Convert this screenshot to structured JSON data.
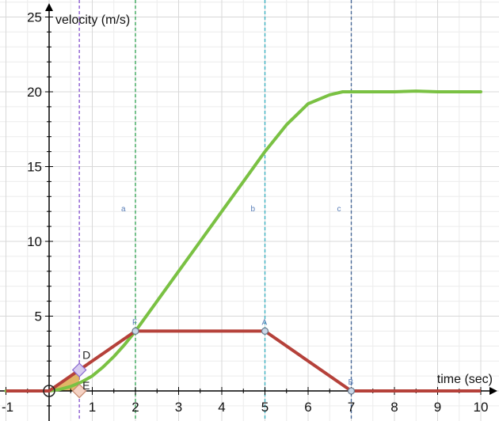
{
  "chart_data": {
    "type": "line",
    "xlabel": "time (sec)",
    "ylabel": "velocity (m/s)",
    "xlim": [
      -1,
      10
    ],
    "ylim": [
      -1.5,
      25
    ],
    "x_ticks": [
      -1,
      1,
      2,
      3,
      4,
      5,
      6,
      7,
      8,
      9,
      10
    ],
    "y_ticks": [
      5,
      10,
      15,
      20,
      25
    ],
    "grid": true,
    "colors": {
      "smooth": "#7ac143",
      "segment": "#b5413a",
      "grid": "#d8d8d8",
      "axis": "#000000",
      "line_a": "#3aa85a",
      "line_b": "#3ab0c0",
      "line_c": "#4a6a9a",
      "line_d": "#8a5ad0"
    },
    "series": [
      {
        "x": [
          -1,
          -0.5,
          0,
          0.25,
          0.5,
          0.75,
          1,
          1.25,
          1.5,
          1.75,
          2,
          2.5,
          3,
          3.5,
          4,
          4.5,
          5,
          5.5,
          6,
          6.5,
          6.8,
          7,
          7.5,
          8,
          8.5,
          9,
          9.5,
          10
        ],
        "values": [
          0,
          0,
          0,
          0.1,
          0.3,
          0.6,
          1,
          1.6,
          2.3,
          3.1,
          4,
          6,
          8,
          10,
          12,
          14,
          16,
          17.8,
          19.2,
          19.8,
          20,
          20,
          20,
          20,
          20.05,
          20,
          20,
          20
        ]
      },
      {
        "x": [
          -1,
          0,
          2,
          5,
          7,
          10
        ],
        "values": [
          0,
          0,
          4,
          4,
          0,
          0
        ]
      }
    ],
    "vertical_lines": [
      {
        "x": 2,
        "label": "a"
      },
      {
        "x": 5,
        "label": "b"
      },
      {
        "x": 7,
        "label": "c"
      },
      {
        "x": 0.7,
        "label": ""
      }
    ],
    "points": [
      {
        "label": "F",
        "x": 2,
        "y": 4
      },
      {
        "label": "A",
        "x": 5,
        "y": 4
      },
      {
        "label": "B",
        "x": 7,
        "y": 0
      },
      {
        "label": "D",
        "x": 0.7,
        "y": 1.4
      },
      {
        "label": "E",
        "x": 0.7,
        "y": 0
      }
    ]
  }
}
